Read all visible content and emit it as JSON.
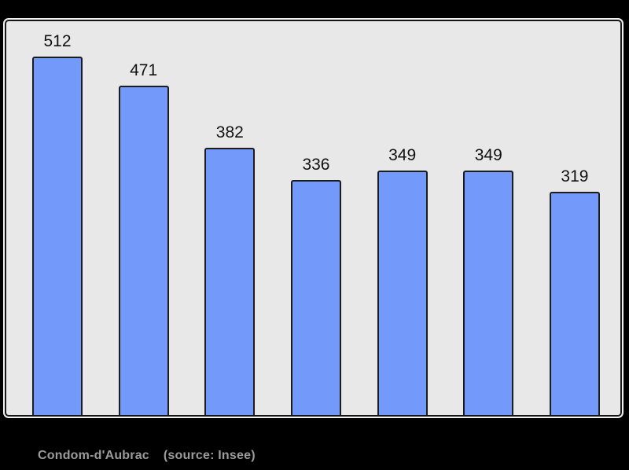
{
  "chart_data": {
    "type": "bar",
    "title": "",
    "xlabel": "",
    "ylabel": "",
    "values": [
      512,
      471,
      382,
      336,
      349,
      349,
      319
    ],
    "data_labels": [
      "512",
      "471",
      "382",
      "336",
      "349",
      "349",
      "319"
    ],
    "ylim": [
      0,
      563
    ],
    "grid": false,
    "legend": "none",
    "pixel_scale": 0.89
  },
  "style": {
    "page_bg": "#000000",
    "plot_bg": "#e8e8e8",
    "frame_border": "#161616",
    "frame_outline": "#f2f2f2",
    "bar_fill": "#7399fa",
    "bar_border": "#1c1c1c",
    "label_color": "#111111",
    "footer_color": "#9b9b9b"
  },
  "footer": {
    "commune": "Condom-d'Aubrac",
    "source": "(source: Insee)"
  }
}
